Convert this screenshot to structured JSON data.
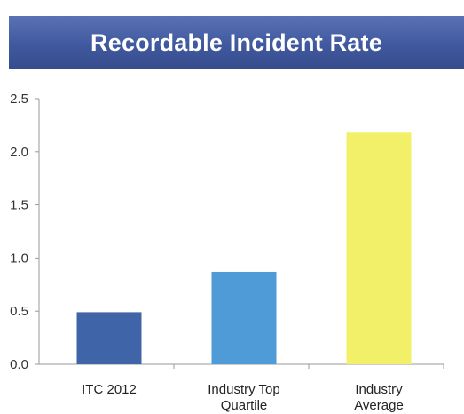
{
  "chart_data": {
    "type": "bar",
    "title": "Recordable Incident Rate",
    "categories": [
      [
        "ITC 2012"
      ],
      [
        "Industry Top",
        "Quartile"
      ],
      [
        "Industry",
        "Average"
      ]
    ],
    "values": [
      0.49,
      0.87,
      2.18
    ],
    "ylim": [
      0,
      2.5
    ],
    "yticks": [
      "0.0",
      "0.5",
      "1.0",
      "1.5",
      "2.0",
      "2.5"
    ],
    "colors": [
      "#3f64a8",
      "#4f9bd8",
      "#f2ef68"
    ],
    "grid": false,
    "legend": "none"
  }
}
